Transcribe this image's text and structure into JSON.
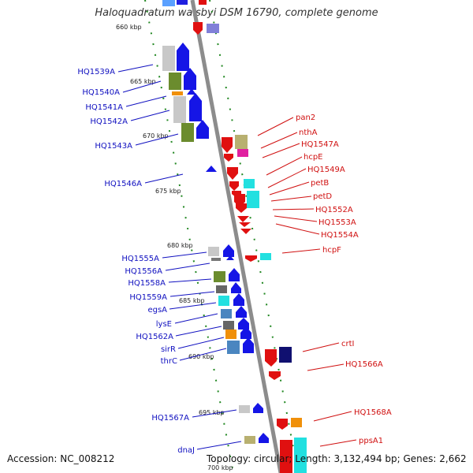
{
  "title": "Haloquadratum walsbyi DSM 16790, complete genome",
  "accession": "Accession: NC_008212",
  "summary": "Topology: circular; Length: 3,132,494 bp; Genes: 2,662",
  "colors": {
    "backbone": "#8c8c8c",
    "reverse_label": "#1010c0",
    "forward_label": "#d01010",
    "dots": "#228822"
  },
  "ticks": [
    "660 kbp",
    "665 kbp",
    "670 kbp",
    "675 kbp",
    "680 kbp",
    "685 kbp",
    "690 kbp",
    "695 kbp",
    "700 kbp"
  ],
  "left_labels": [
    "HQ1539A",
    "HQ1540A",
    "HQ1541A",
    "HQ1542A",
    "HQ1543A",
    "HQ1546A",
    "HQ1555A",
    "HQ1556A",
    "HQ1558A",
    "HQ1559A",
    "egsA",
    "lysE",
    "HQ1562A",
    "sirR",
    "thrC",
    "HQ1567A",
    "dnaJ"
  ],
  "right_labels": [
    "pan2",
    "nthA",
    "HQ1547A",
    "hcpE",
    "HQ1549A",
    "petB",
    "petD",
    "HQ1552A",
    "HQ1553A",
    "HQ1554A",
    "hcpF",
    "crtI",
    "HQ1566A",
    "HQ1568A",
    "ppsA1"
  ]
}
